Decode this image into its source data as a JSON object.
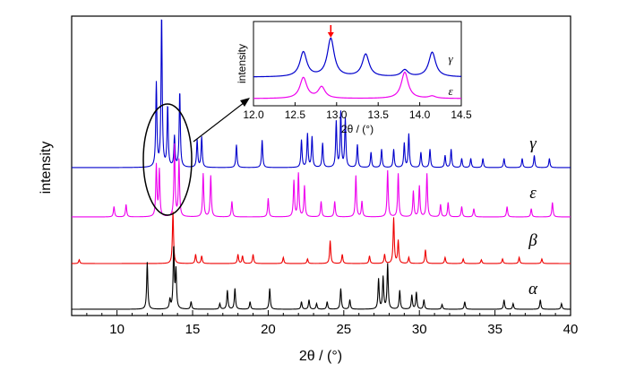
{
  "chart_data": {
    "type": "line",
    "xlabel": "2θ / (°)",
    "ylabel": "intensity",
    "xlim": [
      7,
      40
    ],
    "x_ticks": [
      "10",
      "15",
      "20",
      "25",
      "30",
      "35",
      "40"
    ],
    "series": [
      {
        "name": "γ",
        "color": "#0000cc",
        "peaks": [
          [
            12.6,
            0.55
          ],
          [
            12.95,
            1.0
          ],
          [
            13.35,
            0.4
          ],
          [
            13.8,
            0.2
          ],
          [
            14.15,
            0.5
          ],
          [
            15.3,
            0.18
          ],
          [
            15.6,
            0.2
          ],
          [
            17.9,
            0.15
          ],
          [
            19.6,
            0.18
          ],
          [
            22.2,
            0.18
          ],
          [
            22.6,
            0.22
          ],
          [
            22.9,
            0.2
          ],
          [
            23.6,
            0.16
          ],
          [
            24.5,
            0.3
          ],
          [
            24.8,
            0.36
          ],
          [
            25.1,
            0.32
          ],
          [
            25.9,
            0.15
          ],
          [
            26.8,
            0.1
          ],
          [
            27.5,
            0.12
          ],
          [
            28.3,
            0.12
          ],
          [
            29.0,
            0.16
          ],
          [
            29.3,
            0.22
          ],
          [
            30.1,
            0.1
          ],
          [
            30.7,
            0.12
          ],
          [
            31.7,
            0.08
          ],
          [
            32.1,
            0.12
          ],
          [
            32.8,
            0.06
          ],
          [
            33.4,
            0.06
          ],
          [
            34.2,
            0.06
          ],
          [
            35.6,
            0.06
          ],
          [
            36.8,
            0.06
          ],
          [
            37.6,
            0.08
          ],
          [
            38.6,
            0.06
          ]
        ]
      },
      {
        "name": "ε",
        "color": "#ee00ee",
        "peaks": [
          [
            9.8,
            0.1
          ],
          [
            10.6,
            0.12
          ],
          [
            12.6,
            0.5
          ],
          [
            12.8,
            0.45
          ],
          [
            13.8,
            0.7
          ],
          [
            14.1,
            0.55
          ],
          [
            15.7,
            0.42
          ],
          [
            16.2,
            0.4
          ],
          [
            17.6,
            0.15
          ],
          [
            20.0,
            0.18
          ],
          [
            21.7,
            0.35
          ],
          [
            22.0,
            0.42
          ],
          [
            22.4,
            0.3
          ],
          [
            23.5,
            0.15
          ],
          [
            24.4,
            0.15
          ],
          [
            25.8,
            0.4
          ],
          [
            26.2,
            0.15
          ],
          [
            27.9,
            0.45
          ],
          [
            28.6,
            0.42
          ],
          [
            29.6,
            0.25
          ],
          [
            30.0,
            0.3
          ],
          [
            30.5,
            0.42
          ],
          [
            31.4,
            0.12
          ],
          [
            31.9,
            0.14
          ],
          [
            32.8,
            0.1
          ],
          [
            33.6,
            0.08
          ],
          [
            35.8,
            0.1
          ],
          [
            37.4,
            0.08
          ],
          [
            38.8,
            0.14
          ]
        ]
      },
      {
        "name": "β",
        "color": "#ee0000",
        "peaks": [
          [
            7.5,
            0.05
          ],
          [
            13.7,
            0.68
          ],
          [
            15.2,
            0.12
          ],
          [
            15.6,
            0.1
          ],
          [
            18.0,
            0.12
          ],
          [
            18.3,
            0.1
          ],
          [
            19.0,
            0.12
          ],
          [
            21.0,
            0.08
          ],
          [
            22.6,
            0.06
          ],
          [
            24.1,
            0.3
          ],
          [
            24.9,
            0.12
          ],
          [
            26.7,
            0.1
          ],
          [
            27.7,
            0.12
          ],
          [
            28.3,
            0.6
          ],
          [
            28.6,
            0.3
          ],
          [
            29.3,
            0.08
          ],
          [
            30.4,
            0.18
          ],
          [
            31.7,
            0.08
          ],
          [
            32.9,
            0.06
          ],
          [
            34.1,
            0.05
          ],
          [
            35.5,
            0.06
          ],
          [
            36.6,
            0.08
          ],
          [
            38.1,
            0.06
          ]
        ]
      },
      {
        "name": "α",
        "color": "#000000",
        "peaks": [
          [
            12.0,
            0.5
          ],
          [
            13.5,
            0.1
          ],
          [
            13.75,
            0.66
          ],
          [
            13.9,
            0.4
          ],
          [
            14.9,
            0.08
          ],
          [
            16.8,
            0.06
          ],
          [
            17.3,
            0.2
          ],
          [
            17.8,
            0.22
          ],
          [
            18.8,
            0.08
          ],
          [
            20.1,
            0.22
          ],
          [
            22.2,
            0.08
          ],
          [
            22.7,
            0.1
          ],
          [
            23.2,
            0.06
          ],
          [
            23.9,
            0.08
          ],
          [
            24.8,
            0.22
          ],
          [
            25.4,
            0.1
          ],
          [
            27.3,
            0.32
          ],
          [
            27.6,
            0.34
          ],
          [
            27.9,
            0.48
          ],
          [
            28.7,
            0.2
          ],
          [
            29.5,
            0.15
          ],
          [
            29.8,
            0.18
          ],
          [
            30.3,
            0.1
          ],
          [
            31.5,
            0.05
          ],
          [
            33.0,
            0.08
          ],
          [
            35.6,
            0.1
          ],
          [
            36.2,
            0.06
          ],
          [
            38.0,
            0.1
          ],
          [
            39.4,
            0.06
          ]
        ]
      }
    ],
    "inset": {
      "xlabel": "2θ / (°)",
      "ylabel": "intensity",
      "xlim": [
        12.0,
        14.5
      ],
      "x_ticks": [
        "12.0",
        "12.5",
        "13.0",
        "13.5",
        "14.0",
        "14.5"
      ],
      "arrow_at": 12.93,
      "arrow_color": "#ff0000",
      "series": [
        {
          "name": "γ",
          "color": "#0000cc",
          "peaks": [
            [
              12.6,
              0.55
            ],
            [
              12.93,
              0.85
            ],
            [
              13.35,
              0.5
            ],
            [
              13.82,
              0.15
            ],
            [
              14.15,
              0.55
            ]
          ]
        },
        {
          "name": "ε",
          "color": "#ee00ee",
          "peaks": [
            [
              12.6,
              0.55
            ],
            [
              12.82,
              0.3
            ],
            [
              13.82,
              0.7
            ],
            [
              14.15,
              0.06
            ]
          ]
        }
      ]
    }
  }
}
